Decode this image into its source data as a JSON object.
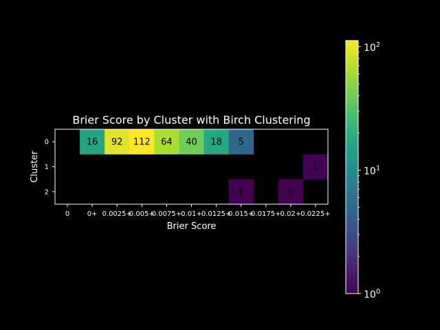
{
  "chart_data": {
    "type": "heatmap",
    "title": "Brier Score by Cluster with Birch Clustering",
    "xlabel": "Brier Score",
    "ylabel": "Cluster",
    "x_tick_labels": [
      "0",
      "0+",
      "0.0025+",
      "0.005+",
      "0.0075+",
      "0.01+",
      "0.0125+",
      "0.015+",
      "0.0175+",
      "0.02+",
      "0.0225+"
    ],
    "y_tick_labels": [
      "0",
      "1",
      "2"
    ],
    "values": [
      [
        null,
        16,
        92,
        112,
        64,
        40,
        18,
        5,
        null,
        null,
        null
      ],
      [
        null,
        null,
        null,
        null,
        null,
        null,
        null,
        null,
        null,
        null,
        1
      ],
      [
        null,
        null,
        null,
        null,
        null,
        null,
        null,
        1,
        null,
        1,
        null
      ]
    ],
    "colorscale": "viridis",
    "color_scale_type": "log",
    "colorbar": {
      "range": [
        1,
        112
      ],
      "ticks": [
        {
          "value": 1,
          "base": "10",
          "exp": "0"
        },
        {
          "value": 10,
          "base": "10",
          "exp": "1"
        },
        {
          "value": 100,
          "base": "10",
          "exp": "2"
        }
      ]
    },
    "grid": false,
    "background": "#000000",
    "foreground": "#ffffff"
  }
}
